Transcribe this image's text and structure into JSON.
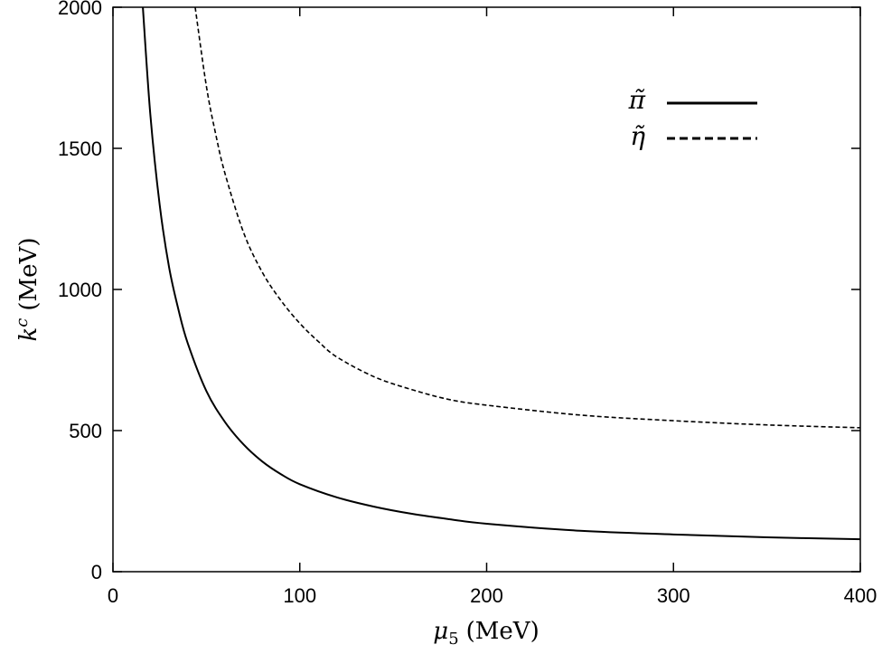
{
  "chart_data": {
    "type": "line",
    "xlabel_symbol": "μ",
    "xlabel_sub": "5",
    "xlabel_unit": "(MeV)",
    "ylabel_symbol": "k",
    "ylabel_sup": "c",
    "ylabel_unit": "(MeV)",
    "xlim": [
      0,
      400
    ],
    "ylim": [
      0,
      2000
    ],
    "xticks": [
      "0",
      "100",
      "200",
      "300",
      "400"
    ],
    "yticks": [
      "0",
      "500",
      "1000",
      "1500",
      "2000"
    ],
    "grid": false,
    "legend_position": "top-right",
    "series": [
      {
        "name": "π̃",
        "style": "solid",
        "color": "#000000",
        "x": [
          16,
          20,
          25,
          30,
          35,
          40,
          50,
          60,
          70,
          80,
          90,
          100,
          120,
          140,
          160,
          180,
          200,
          250,
          300,
          350,
          400
        ],
        "y": [
          2000,
          1620,
          1300,
          1080,
          930,
          810,
          640,
          530,
          450,
          390,
          345,
          310,
          263,
          230,
          205,
          186,
          170,
          145,
          132,
          122,
          115
        ]
      },
      {
        "name": "η̃",
        "style": "dashed",
        "color": "#000000",
        "x": [
          44,
          50,
          55,
          60,
          70,
          80,
          90,
          100,
          110,
          120,
          140,
          160,
          180,
          200,
          250,
          300,
          350,
          400
        ],
        "y": [
          2000,
          1720,
          1550,
          1410,
          1200,
          1060,
          960,
          880,
          815,
          760,
          690,
          645,
          610,
          590,
          555,
          535,
          520,
          510
        ]
      }
    ]
  }
}
